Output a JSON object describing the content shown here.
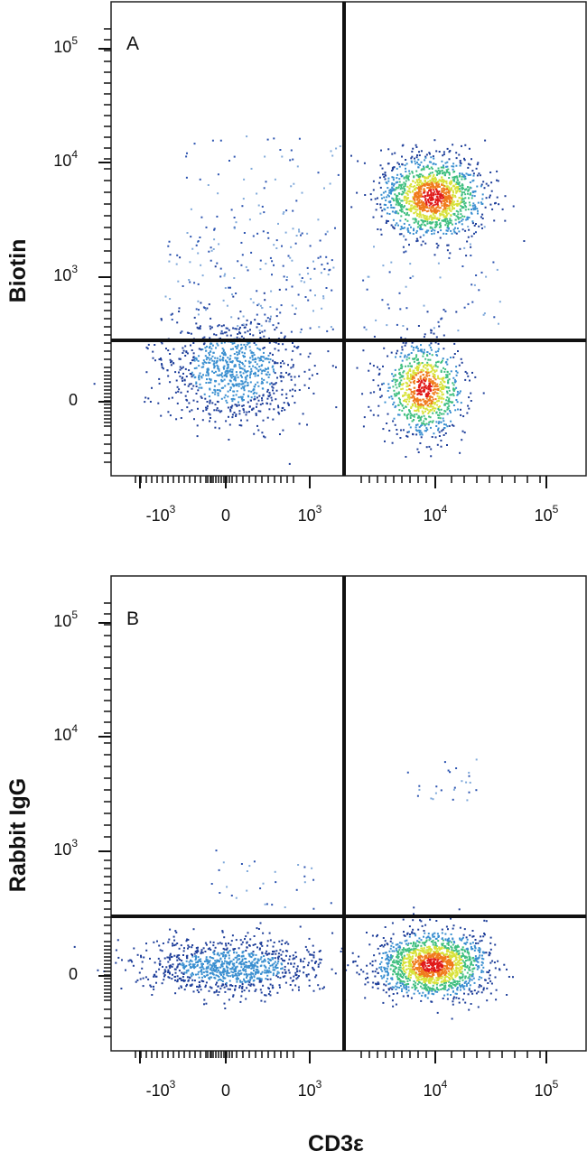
{
  "chart_data": [
    {
      "type": "scatter",
      "panel": "A",
      "xlabel": "CD3ε",
      "ylabel": "Biotin",
      "x_ticks": [
        {
          "base": "-10",
          "exp": "3"
        },
        {
          "base": "0",
          "exp": ""
        },
        {
          "base": "10",
          "exp": "3"
        },
        {
          "base": "10",
          "exp": "4"
        },
        {
          "base": "10",
          "exp": "5"
        }
      ],
      "y_ticks": [
        {
          "base": "0",
          "exp": ""
        },
        {
          "base": "10",
          "exp": "3"
        },
        {
          "base": "10",
          "exp": "4"
        },
        {
          "base": "10",
          "exp": "5"
        }
      ],
      "scale": "biexponential",
      "quadrant_gate": {
        "x": 2000,
        "y": 300
      },
      "populations": [
        {
          "quadrant": "lower-left",
          "x_center": 0,
          "y_center": 0,
          "density": "medium"
        },
        {
          "quadrant": "upper-right",
          "x_center": 12000,
          "y_center": 4500,
          "density": "high"
        },
        {
          "quadrant": "lower-right",
          "x_center": 8500,
          "y_center": 0,
          "density": "medium"
        }
      ],
      "color_scale": [
        "#1f3f9a",
        "#3a8fd0",
        "#3fbf7f",
        "#d8e23a",
        "#f07b1c",
        "#e01a1a"
      ]
    },
    {
      "type": "scatter",
      "panel": "B",
      "xlabel": "CD3ε",
      "ylabel": "Rabbit IgG",
      "x_ticks": [
        {
          "base": "-10",
          "exp": "3"
        },
        {
          "base": "0",
          "exp": ""
        },
        {
          "base": "10",
          "exp": "3"
        },
        {
          "base": "10",
          "exp": "4"
        },
        {
          "base": "10",
          "exp": "5"
        }
      ],
      "y_ticks": [
        {
          "base": "0",
          "exp": ""
        },
        {
          "base": "10",
          "exp": "3"
        },
        {
          "base": "10",
          "exp": "4"
        },
        {
          "base": "10",
          "exp": "5"
        }
      ],
      "scale": "biexponential",
      "quadrant_gate": {
        "x": 2000,
        "y": 300
      },
      "populations": [
        {
          "quadrant": "lower-left",
          "x_center": 0,
          "y_center": 0,
          "density": "medium"
        },
        {
          "quadrant": "lower-right",
          "x_center": 12000,
          "y_center": 0,
          "density": "high"
        },
        {
          "quadrant": "upper-right",
          "x_center": 9000,
          "y_center": 3000,
          "density": "sparse"
        }
      ],
      "color_scale": [
        "#1f3f9a",
        "#3a8fd0",
        "#3fbf7f",
        "#d8e23a",
        "#f07b1c",
        "#e01a1a"
      ]
    }
  ]
}
